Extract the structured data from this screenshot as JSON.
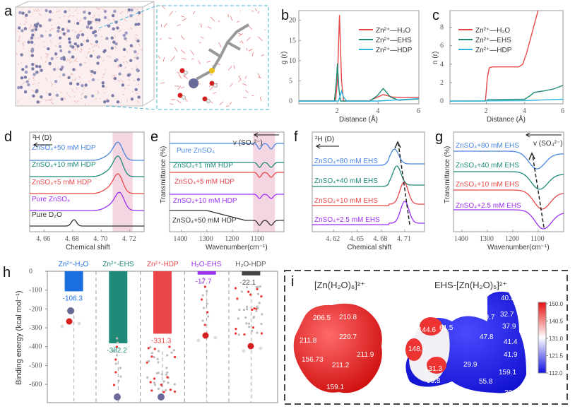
{
  "panel_letters": [
    "a",
    "b",
    "c",
    "d",
    "e",
    "f",
    "g",
    "h",
    "i"
  ],
  "colors": {
    "red": "#e8474a",
    "teal": "#1f8a78",
    "cyan": "#2bb5e0",
    "blue": "#4a86e0",
    "purple": "#9b30f0",
    "black": "#333333",
    "gray": "#444444",
    "bar_blue": "#1a6fe0",
    "shade": "#f4d6e2"
  },
  "chart_data": [
    {
      "panel": "b",
      "type": "line",
      "xlabel": "Distance (Å)",
      "ylabel": "g (r)",
      "xlim": [
        0.1,
        6
      ],
      "ylim": [
        -0.7,
        22.4
      ],
      "xticks": [
        2,
        4,
        6
      ],
      "yticks": [
        0,
        5,
        10,
        15,
        20
      ],
      "legend": "top-right",
      "series": [
        {
          "name": "Zn²⁺—H₂O",
          "color": "#e8474a",
          "points": [
            [
              0.1,
              0
            ],
            [
              1.9,
              0
            ],
            [
              2.0,
              5
            ],
            [
              2.1,
              21.3
            ],
            [
              2.2,
              5
            ],
            [
              2.3,
              0
            ],
            [
              3.5,
              0
            ],
            [
              3.9,
              0.8
            ],
            [
              4.25,
              1.6
            ],
            [
              4.7,
              1.0
            ],
            [
              5.2,
              0.85
            ],
            [
              6,
              0.9
            ]
          ]
        },
        {
          "name": "Zn²⁺—EHS",
          "color": "#1f8a78",
          "points": [
            [
              0.1,
              0
            ],
            [
              1.85,
              0
            ],
            [
              1.95,
              5
            ],
            [
              2.0,
              9.3
            ],
            [
              2.07,
              3
            ],
            [
              2.15,
              0
            ],
            [
              3.6,
              0
            ],
            [
              3.95,
              1.3
            ],
            [
              4.25,
              3.1
            ],
            [
              4.6,
              1.0
            ],
            [
              5.0,
              0.2
            ],
            [
              6,
              0.5
            ]
          ]
        },
        {
          "name": "Zn²⁺—HDP",
          "color": "#2bb5e0",
          "points": [
            [
              0.1,
              0
            ],
            [
              2.05,
              0
            ],
            [
              2.15,
              1.5
            ],
            [
              2.2,
              2.5
            ],
            [
              2.3,
              1
            ],
            [
              2.45,
              0
            ],
            [
              4,
              0
            ],
            [
              5,
              0.3
            ],
            [
              6,
              0.6
            ]
          ]
        }
      ]
    },
    {
      "panel": "c",
      "type": "line",
      "xlabel": "Distance (Å)",
      "ylabel": "n (r)",
      "xlim": [
        0.1,
        6
      ],
      "ylim": [
        -0.3,
        9.8
      ],
      "xticks": [
        2,
        4,
        6
      ],
      "yticks": [
        0,
        2,
        4,
        6,
        8
      ],
      "legend": "top-left",
      "series": [
        {
          "name": "Zn²⁺—H₂O",
          "color": "#e8474a",
          "points": [
            [
              1.95,
              0
            ],
            [
              2.05,
              2.5
            ],
            [
              2.15,
              3.6
            ],
            [
              2.3,
              3.7
            ],
            [
              3.7,
              3.7
            ],
            [
              3.9,
              4.0
            ],
            [
              4.1,
              5.2
            ],
            [
              4.4,
              7.5
            ],
            [
              4.7,
              9.8
            ]
          ]
        },
        {
          "name": "Zn²⁺—EHS",
          "color": "#1f8a78",
          "points": [
            [
              0.1,
              0
            ],
            [
              1.95,
              0
            ],
            [
              2.1,
              0.15
            ],
            [
              4.0,
              0.2
            ],
            [
              4.3,
              0.6
            ],
            [
              4.5,
              0.95
            ],
            [
              5,
              1.1
            ],
            [
              5.5,
              1.3
            ],
            [
              6,
              1.7
            ]
          ]
        },
        {
          "name": "Zn²⁺—HDP",
          "color": "#2bb5e0",
          "points": [
            [
              0.1,
              0
            ],
            [
              4,
              0.05
            ],
            [
              6,
              0.2
            ]
          ]
        }
      ]
    },
    {
      "panel": "d",
      "type": "line",
      "title_label": "²H (D)",
      "xlabel": "Chemical shift",
      "xlim": [
        4.65,
        4.73
      ],
      "xticks": [
        "4. 66",
        "4. 68",
        "4. 70",
        "4. 72"
      ],
      "xtick_values": [
        4.66,
        4.68,
        4.7,
        4.72
      ],
      "shaded_range": [
        4.708,
        4.722
      ],
      "series": [
        {
          "name": "ZnSO₄+50 mM HDP",
          "color": "#4a86e0",
          "peak": 4.712
        },
        {
          "name": "ZnSO₄+10 mM HDP",
          "color": "#1f8a78",
          "peak": 4.712
        },
        {
          "name": "ZnSO₄+5 mM HDP",
          "color": "#e8474a",
          "peak": 4.712
        },
        {
          "name": "Pure ZnSO₄",
          "color": "#9b30f0",
          "peak": 4.713
        },
        {
          "name": "Pure D₂O",
          "color": "#333333",
          "peak": 4.681
        }
      ]
    },
    {
      "panel": "e",
      "type": "line",
      "title_label": "v (SO₄²⁻)",
      "xlabel": "Wavenumber(cm⁻¹)",
      "ylabel": "Transmittance (%)",
      "xlim": [
        1445,
        1000
      ],
      "xticks": [
        1400,
        1300,
        1200,
        1100
      ],
      "shaded_range": [
        1120,
        1035
      ],
      "series": [
        {
          "name": "Pure ZnSO₄",
          "color": "#4a86e0",
          "dips": [
            1095,
            1050
          ]
        },
        {
          "name": "ZnSO₄+1 mM HDP",
          "color": "#1f8a78",
          "dips": [
            1095,
            1050
          ]
        },
        {
          "name": "ZnSO₄+5 mM HDP",
          "color": "#e8474a",
          "dips": [
            1095,
            1050
          ]
        },
        {
          "name": "ZnSO₄+10 mM HDP",
          "color": "#9b30f0",
          "dips": [
            1095,
            1050
          ]
        },
        {
          "name": "ZnSO₄+50 mM HDP",
          "color": "#333333",
          "dips": [
            1095,
            1050
          ]
        }
      ]
    },
    {
      "panel": "f",
      "type": "line",
      "title_label": "²H (D)",
      "xlabel": "Chemical shift",
      "xlim": [
        4.593,
        4.735
      ],
      "xticks": [
        "4. 62",
        "4. 65",
        "4. 68",
        "4. 71"
      ],
      "xtick_values": [
        4.62,
        4.65,
        4.68,
        4.71
      ],
      "series": [
        {
          "name": "ZnSO₄+80 mM EHS",
          "color": "#4a86e0",
          "peak": 4.697
        },
        {
          "name": "ZnSO₄+40 mM EHS",
          "color": "#1f8a78",
          "peak": 4.7
        },
        {
          "name": "ZnSO₄+10 mM EHS",
          "color": "#e8474a",
          "peak": 4.709
        },
        {
          "name": "ZnSO₄+2.5 mM EHS",
          "color": "#9b30f0",
          "peak": 4.71
        }
      ]
    },
    {
      "panel": "g",
      "type": "line",
      "title_label": "v (SO₄²⁻)",
      "xlabel": "Wavenumber(cm⁻¹)",
      "ylabel": "Transmittance (%)",
      "xlim": [
        1433,
        1000
      ],
      "xticks": [
        1400,
        1300,
        1200,
        1100
      ],
      "series": [
        {
          "name": "ZnSO₄+80 mM EHS",
          "color": "#4a86e0",
          "dip": 1105
        },
        {
          "name": "ZnSO₄+40 mM EHS",
          "color": "#1f8a78",
          "dip": 1095
        },
        {
          "name": "ZnSO₄+10 mM EHS",
          "color": "#e8474a",
          "dip": 1085
        },
        {
          "name": "ZnSO₄+2.5 mM EHS",
          "color": "#9b30f0",
          "dip": 1080
        }
      ]
    },
    {
      "panel": "h",
      "type": "bar",
      "ylabel": "Binding energy (kcal mol⁻¹)",
      "ylim": [
        0,
        -697
      ],
      "yticks": [
        0,
        -100,
        -200,
        -300,
        -400,
        -500,
        -600
      ],
      "categories": [
        "Zn²⁺-H₂O",
        "Zn²⁺-EHS",
        "Zn²⁺-HDP",
        "H₂O-EHS",
        "H₂O-HDP"
      ],
      "values": [
        -106.3,
        -382.2,
        -331.3,
        -17.7,
        -22.1
      ],
      "value_labels": [
        "-106.3",
        "-382.2",
        "-331.3",
        "-17.7",
        "-22.1"
      ],
      "bar_colors": [
        "#1a6fe0",
        "#1f8a78",
        "#e8474a",
        "#9b30f0",
        "#444444"
      ]
    },
    {
      "panel": "i",
      "type": "heatmap",
      "titles": [
        "[Zn(H₂O)₆]²⁺",
        "EHS-[Zn(H₂O)₅]²⁺"
      ],
      "left_values": [
        "206.5",
        "210.8",
        "211.8",
        "220.7",
        "211.9",
        "156.73",
        "211.2",
        "159.1"
      ],
      "right_values": [
        "40.5",
        "49.7",
        "32.7",
        "37.9",
        "61.5",
        "144.6",
        "47.8",
        "41.4",
        "148.4",
        "41.9",
        "29.9",
        "131.3",
        "159.1",
        "56.8",
        "55.8",
        "30.3"
      ],
      "colorbar_ticks": [
        "150.0",
        "140.5",
        "131.0",
        "121.5",
        "112.0"
      ],
      "colorbar_range": [
        112.0,
        150.0
      ]
    }
  ]
}
